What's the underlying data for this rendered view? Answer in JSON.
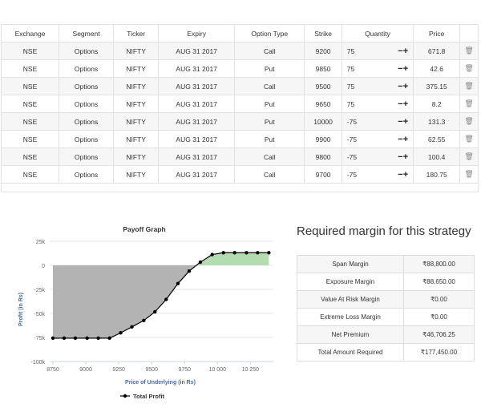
{
  "legs": {
    "headers": [
      "Exchange",
      "Segment",
      "Ticker",
      "Expiry",
      "Option Type",
      "Strike",
      "Quantity",
      "Price",
      ""
    ],
    "rows": [
      {
        "exchange": "NSE",
        "segment": "Options",
        "ticker": "NIFTY",
        "expiry": "AUG 31 2017",
        "type": "Call",
        "strike": "9200",
        "qty": "75",
        "price": "671.8"
      },
      {
        "exchange": "NSE",
        "segment": "Options",
        "ticker": "NIFTY",
        "expiry": "AUG 31 2017",
        "type": "Put",
        "strike": "9850",
        "qty": "75",
        "price": "42.6"
      },
      {
        "exchange": "NSE",
        "segment": "Options",
        "ticker": "NIFTY",
        "expiry": "AUG 31 2017",
        "type": "Call",
        "strike": "9500",
        "qty": "75",
        "price": "375.15"
      },
      {
        "exchange": "NSE",
        "segment": "Options",
        "ticker": "NIFTY",
        "expiry": "AUG 31 2017",
        "type": "Put",
        "strike": "9650",
        "qty": "75",
        "price": "8.2"
      },
      {
        "exchange": "NSE",
        "segment": "Options",
        "ticker": "NIFTY",
        "expiry": "AUG 31 2017",
        "type": "Put",
        "strike": "10000",
        "qty": "-75",
        "price": "131.3"
      },
      {
        "exchange": "NSE",
        "segment": "Options",
        "ticker": "NIFTY",
        "expiry": "AUG 31 2017",
        "type": "Put",
        "strike": "9900",
        "qty": "-75",
        "price": "62.55"
      },
      {
        "exchange": "NSE",
        "segment": "Options",
        "ticker": "NIFTY",
        "expiry": "AUG 31 2017",
        "type": "Call",
        "strike": "9800",
        "qty": "-75",
        "price": "100.4"
      },
      {
        "exchange": "NSE",
        "segment": "Options",
        "ticker": "NIFTY",
        "expiry": "AUG 31 2017",
        "type": "Call",
        "strike": "9700",
        "qty": "-75",
        "price": "180.75"
      }
    ],
    "minus_plus": "−+",
    "delete_icon": "trash-icon"
  },
  "chart_data": {
    "type": "area",
    "title": "Payoff Graph",
    "xlabel": "Price of Underlying (in Rs)",
    "ylabel": "Profit (in Rs)",
    "xlim": [
      8750,
      10400
    ],
    "ylim": [
      -100000,
      25000
    ],
    "x_ticks": [
      "8750",
      "9000",
      "9250",
      "9500",
      "9750",
      "10 000",
      "10 250"
    ],
    "x_tick_values": [
      8750,
      9000,
      9250,
      9500,
      9750,
      10000,
      10250
    ],
    "y_ticks": [
      "25k",
      "0",
      "-25k",
      "-50k",
      "-75k",
      "-100k"
    ],
    "y_tick_values": [
      25000,
      0,
      -25000,
      -50000,
      -75000,
      -100000
    ],
    "series": [
      {
        "name": "Total Profit",
        "x": [
          8750,
          8835,
          8920,
          9010,
          9095,
          9180,
          9265,
          9350,
          9440,
          9525,
          9610,
          9700,
          9785,
          9870,
          9960,
          10045,
          10130,
          10220,
          10305,
          10390
        ],
        "y": [
          -75700,
          -75700,
          -75700,
          -75700,
          -75700,
          -75700,
          -70200,
          -64000,
          -57400,
          -48400,
          -35500,
          -18900,
          -6000,
          3300,
          11200,
          13100,
          13100,
          13100,
          13100,
          13100
        ]
      }
    ],
    "colors": {
      "loss": "#b3b3b3",
      "profit": "#b3dcb0",
      "line": "#000000"
    },
    "legend": "bottom",
    "grid": true
  },
  "margin": {
    "title": "Required margin for this strategy",
    "rows": [
      {
        "label": "Span Margin",
        "value": "₹88,800.00"
      },
      {
        "label": "Exposure Margin",
        "value": "₹88,650.00"
      },
      {
        "label": "Value At Risk Margin",
        "value": "₹0.00"
      },
      {
        "label": "Extreme Loss Margin",
        "value": "₹0.00"
      },
      {
        "label": "Net Premium",
        "value": "₹46,706.25"
      },
      {
        "label": "Total Amount Required",
        "value": "₹177,450.00"
      }
    ]
  }
}
